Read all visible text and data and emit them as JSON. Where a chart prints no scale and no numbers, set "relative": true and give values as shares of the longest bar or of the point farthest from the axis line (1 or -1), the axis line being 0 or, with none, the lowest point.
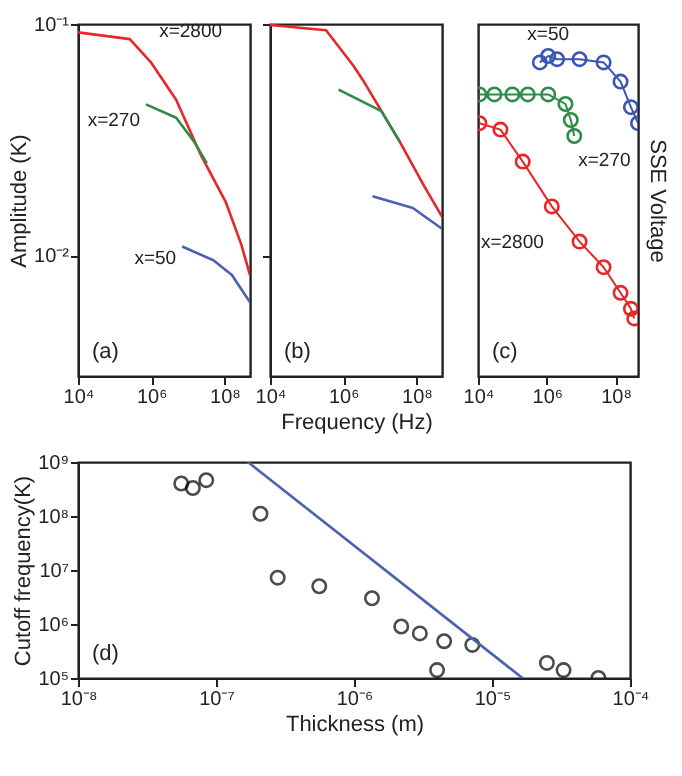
{
  "chart_data": [
    {
      "type": "line",
      "ylabel": "Amplitude (K)",
      "log": "xy",
      "xlim": [
        10000,
        500000000
      ],
      "ylim": [
        0.003,
        0.1
      ],
      "xticks": [
        {
          "value": 10000,
          "label": "10⁴"
        },
        {
          "value": 1000000,
          "label": "10⁶"
        },
        {
          "value": 100000000,
          "label": "10⁸"
        }
      ],
      "yticks": [
        {
          "value": 0.01,
          "label": "10⁻²"
        },
        {
          "value": 0.1,
          "label": "10⁻¹"
        }
      ],
      "series": [
        {
          "name": "x=2800",
          "color": "#e8262a",
          "x": [
            10000,
            260000,
            1000000,
            4800000,
            23000000,
            110000000,
            290000000,
            500000000
          ],
          "values": [
            0.092,
            0.086,
            0.068,
            0.047,
            0.027,
            0.0169,
            0.0111,
            0.0082
          ]
        },
        {
          "name": "x=270",
          "color": "#2e8b4a",
          "x": [
            720000,
            4800000,
            15000000,
            33000000
          ],
          "values": [
            0.0449,
            0.0393,
            0.0309,
            0.025
          ]
        },
        {
          "name": "x=50",
          "color": "#4a60b0",
          "x": [
            7000000,
            50000000,
            160000000,
            500000000
          ],
          "values": [
            0.0109,
            0.0095,
            0.0082,
            0.00625
          ]
        }
      ],
      "annotations": [
        "(a)"
      ]
    },
    {
      "type": "line",
      "xlabel": "Frequency (Hz)",
      "log": "xy",
      "tick_labels": "x",
      "xlim": [
        10000,
        500000000
      ],
      "ylim": [
        0.003,
        0.1
      ],
      "xticks": [
        {
          "value": 10000,
          "label": "10⁴"
        },
        {
          "value": 1000000,
          "label": "10⁶"
        },
        {
          "value": 100000000,
          "label": "10⁸"
        }
      ],
      "yticks": [
        {
          "value": 0.01,
          "label": null
        },
        {
          "value": 0.1,
          "label": null
        }
      ],
      "series": [
        {
          "color": "#e8262a",
          "x": [
            10000,
            340000,
            1900000,
            3500000,
            35000000,
            160000000,
            500000000
          ],
          "values": [
            0.099,
            0.094,
            0.066,
            0.057,
            0.031,
            0.02,
            0.0147
          ]
        },
        {
          "color": "#2e8b4a",
          "x": [
            750000,
            11000000,
            35000000
          ],
          "values": [
            0.052,
            0.042,
            0.031
          ]
        },
        {
          "color": "#4a60b0",
          "x": [
            6300000,
            80000000,
            500000000
          ],
          "values": [
            0.018,
            0.016,
            0.013
          ]
        }
      ],
      "annotations": [
        "(b)"
      ]
    },
    {
      "type": "line",
      "ylabel": "SSE Voltage",
      "relative": true,
      "log": "x",
      "marker": "circle",
      "xlim": [
        10000,
        450000000
      ],
      "xticks": [
        {
          "value": 10000,
          "label": "10⁴"
        },
        {
          "value": 1000000,
          "label": "10⁶"
        },
        {
          "value": 100000000,
          "label": "10⁸"
        }
      ],
      "series": [
        {
          "name": "x=50",
          "color": "#3a55b4",
          "x": [
            630000,
            1100000,
            2000000,
            9000000,
            45000000,
            140000000,
            280000000,
            450000000
          ],
          "values": [
            0.98,
            1.0,
            0.99,
            0.99,
            0.98,
            0.92,
            0.84,
            0.79
          ]
        },
        {
          "name": "x=270",
          "color": "#2e8b4a",
          "x": [
            11000,
            30000,
            100000,
            280000,
            1100000,
            3500000,
            5000000,
            6300000
          ],
          "values": [
            0.88,
            0.88,
            0.88,
            0.88,
            0.88,
            0.85,
            0.8,
            0.75
          ]
        },
        {
          "name": "x=2800",
          "color": "#e8262a",
          "x": [
            11000,
            45000,
            200000,
            1400000,
            9000000,
            45000000,
            140000000,
            280000000,
            350000000
          ],
          "values": [
            0.79,
            0.77,
            0.67,
            0.53,
            0.42,
            0.34,
            0.26,
            0.21,
            0.18
          ]
        }
      ],
      "annotations": [
        "(c)"
      ]
    },
    {
      "type": "scatter",
      "xlabel": "Thickness (m)",
      "ylabel": "Cutoff frequency(K)",
      "log": "xy",
      "xlim": [
        1e-08,
        0.0001
      ],
      "ylim": [
        100000,
        1000000000
      ],
      "xticks": [
        {
          "value": 1e-08,
          "label": "10⁻⁸"
        },
        {
          "value": 1e-07,
          "label": "10⁻⁷"
        },
        {
          "value": 1e-06,
          "label": "10⁻⁶"
        },
        {
          "value": 1e-05,
          "label": "10⁻⁵"
        },
        {
          "value": 0.0001,
          "label": "10⁻⁴"
        }
      ],
      "yticks": [
        {
          "value": 100000,
          "label": "10⁵"
        },
        {
          "value": 1000000,
          "label": "10⁶"
        },
        {
          "value": 10000000,
          "label": "10⁷"
        },
        {
          "value": 100000000,
          "label": "10⁸"
        },
        {
          "value": 1000000000,
          "label": "10⁹"
        }
      ],
      "series": [
        {
          "marker": "circle",
          "color": "#000000",
          "x": [
            5.6e-08,
            6.8e-08,
            8.5e-08,
            2.1e-07,
            2.8e-07,
            5.6e-07,
            1.35e-06,
            2.2e-06,
            3e-06,
            4.5e-06,
            7.2e-06,
            4e-06,
            2.5e-05,
            3.3e-05,
            5.9e-05
          ],
          "values": [
            400000000,
            330000000,
            460000000,
            110000000,
            7200000,
            5000000,
            3000000,
            900000,
            670000,
            480000,
            410000,
            140000,
            190000,
            140000,
            100000
          ]
        },
        {
          "type": "line",
          "color": "#4a60b0",
          "x": [
            1.7e-07,
            1.66e-05
          ],
          "values": [
            1000000000,
            100000
          ]
        }
      ],
      "annotations": [
        "(d)"
      ]
    }
  ]
}
